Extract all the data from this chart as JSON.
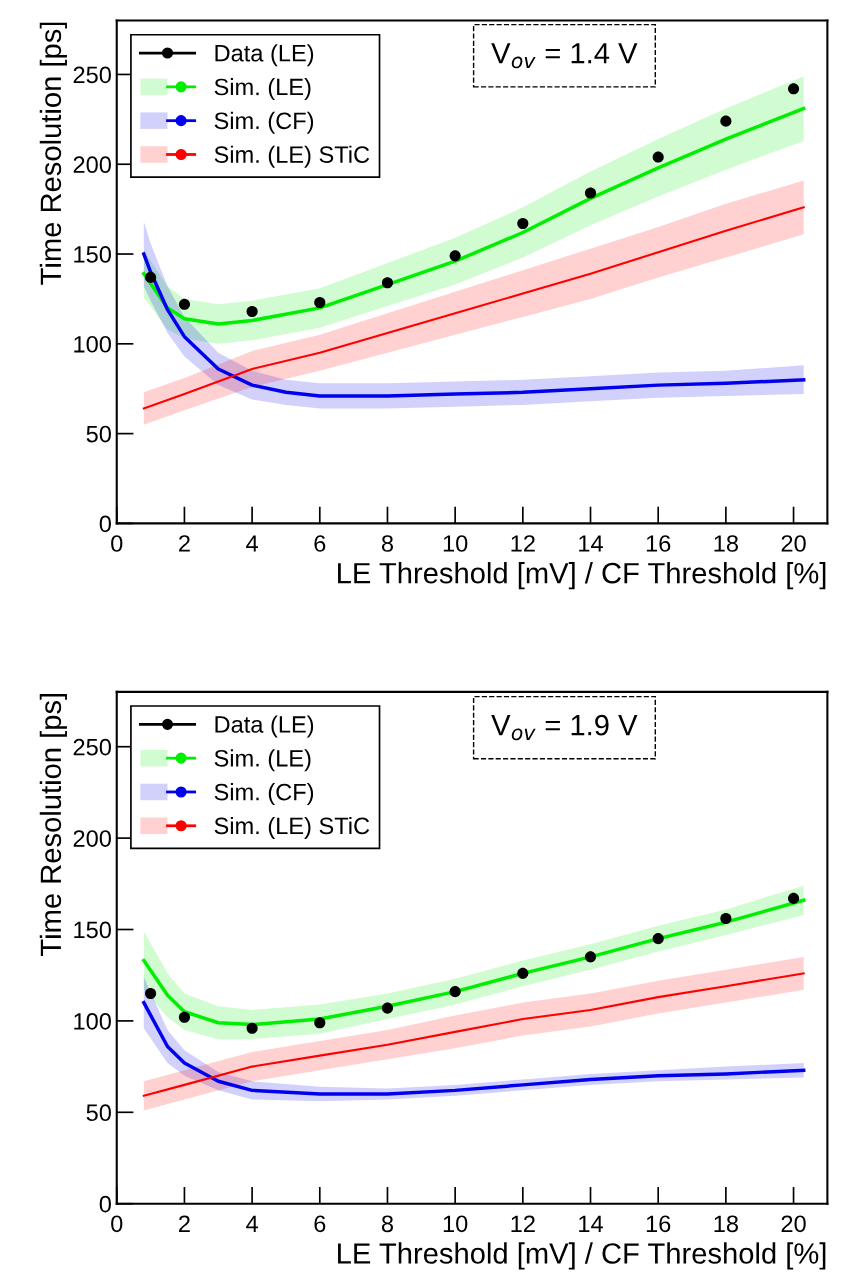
{
  "chart_data": [
    {
      "type": "line",
      "xlabel": "LE Threshold [mV] / CF Threshold [%]",
      "ylabel": "Time Resolution [ps]",
      "annotations": [
        "V$_{ov}$ = 1.4 V"
      ],
      "xlim": [
        0,
        21
      ],
      "ylim": [
        0,
        280
      ],
      "xticks": [
        0,
        2,
        4,
        6,
        8,
        10,
        12,
        14,
        16,
        18,
        20
      ],
      "yticks": [
        0,
        50,
        100,
        150,
        200,
        250
      ],
      "legend": "top left",
      "grid": false,
      "series": [
        {
          "name": "Data (LE)",
          "type": "scatter",
          "marker": "circle",
          "color": "#000000",
          "x": [
            1,
            2,
            4,
            6,
            8,
            10,
            12,
            14,
            16,
            18,
            20
          ],
          "values": [
            137,
            122,
            118,
            123,
            134,
            149,
            167,
            184,
            204,
            224,
            242
          ]
        },
        {
          "name": "Sim. (LE)",
          "color": "#00ee00",
          "x": [
            0.8,
            1.5,
            2,
            3,
            4,
            6,
            8,
            10,
            12,
            14,
            16,
            18,
            20.3
          ],
          "values": [
            139,
            120,
            114,
            111,
            113,
            120,
            133,
            146,
            162,
            181,
            198,
            214,
            231
          ],
          "lower": [
            126,
            108,
            103,
            100,
            102,
            109,
            121,
            133,
            148,
            166,
            182,
            197,
            213
          ],
          "upper": [
            152,
            132,
            125,
            122,
            124,
            131,
            145,
            159,
            176,
            196,
            214,
            231,
            249
          ]
        },
        {
          "name": "Sim. (CF)",
          "color": "#0000ee",
          "x": [
            0.8,
            1,
            1.5,
            2,
            3,
            4,
            5,
            6,
            8,
            10,
            12,
            14,
            16,
            18,
            20.3
          ],
          "values": [
            150,
            140,
            119,
            104,
            86,
            77,
            73,
            71,
            71,
            72,
            73,
            75,
            77,
            78,
            80
          ],
          "lower": [
            132,
            124,
            106,
            93,
            77,
            69,
            66,
            64,
            64,
            65,
            66,
            68,
            70,
            71,
            72
          ],
          "upper": [
            168,
            156,
            132,
            115,
            95,
            85,
            80,
            78,
            78,
            79,
            80,
            82,
            84,
            85,
            88
          ]
        },
        {
          "name": "Sim. (LE) STiC",
          "color": "#ff0000",
          "x": [
            0.8,
            2,
            4,
            6,
            8,
            10,
            12,
            14,
            16,
            18,
            20.3
          ],
          "values": [
            64,
            72,
            86,
            95,
            106,
            117,
            128,
            139,
            151,
            163,
            176
          ],
          "lower": [
            55,
            63,
            76,
            85,
            95,
            105,
            115,
            125,
            137,
            148,
            161
          ],
          "upper": [
            73,
            81,
            96,
            105,
            117,
            129,
            141,
            153,
            165,
            178,
            191
          ]
        }
      ]
    },
    {
      "type": "line",
      "xlabel": "LE Threshold [mV] / CF Threshold [%]",
      "ylabel": "Time Resolution [ps]",
      "annotations": [
        "V$_{ov}$ = 1.9 V"
      ],
      "xlim": [
        0,
        21
      ],
      "ylim": [
        0,
        280
      ],
      "xticks": [
        0,
        2,
        4,
        6,
        8,
        10,
        12,
        14,
        16,
        18,
        20
      ],
      "yticks": [
        0,
        50,
        100,
        150,
        200,
        250
      ],
      "legend": "top left",
      "grid": false,
      "series": [
        {
          "name": "Data (LE)",
          "type": "scatter",
          "marker": "circle",
          "color": "#000000",
          "x": [
            1,
            2,
            4,
            6,
            8,
            10,
            12,
            14,
            16,
            18,
            20
          ],
          "values": [
            115,
            102,
            96,
            99,
            107,
            116,
            126,
            135,
            145,
            156,
            167
          ]
        },
        {
          "name": "Sim. (LE)",
          "color": "#00ee00",
          "x": [
            0.8,
            1.5,
            2,
            3,
            4,
            6,
            8,
            10,
            12,
            14,
            16,
            18,
            20.3
          ],
          "values": [
            133,
            114,
            105,
            99,
            98,
            101,
            108,
            116,
            126,
            135,
            145,
            154,
            166
          ],
          "lower": [
            117,
            102,
            95,
            90,
            90,
            93,
            101,
            109,
            119,
            128,
            138,
            147,
            158
          ],
          "upper": [
            149,
            126,
            115,
            108,
            106,
            109,
            115,
            123,
            133,
            142,
            152,
            161,
            174
          ]
        },
        {
          "name": "Sim. (CF)",
          "color": "#0000ee",
          "x": [
            0.8,
            1.5,
            2,
            3,
            4,
            6,
            8,
            10,
            12,
            14,
            16,
            18,
            20.3
          ],
          "values": [
            110,
            86,
            77,
            67,
            62,
            60,
            60,
            62,
            65,
            68,
            70,
            71,
            73
          ],
          "lower": [
            96,
            77,
            70,
            62,
            57,
            56,
            57,
            59,
            62,
            65,
            67,
            68,
            69
          ],
          "upper": [
            124,
            95,
            84,
            72,
            67,
            64,
            63,
            65,
            68,
            71,
            73,
            75,
            77
          ]
        },
        {
          "name": "Sim. (LE) STiC",
          "color": "#ff0000",
          "x": [
            0.8,
            2,
            4,
            6,
            8,
            10,
            12,
            14,
            16,
            18,
            20.3
          ],
          "values": [
            59,
            65,
            75,
            81,
            87,
            94,
            101,
            106,
            113,
            119,
            126
          ],
          "lower": [
            51,
            57,
            67,
            73,
            79,
            85,
            92,
            97,
            104,
            110,
            117
          ],
          "upper": [
            67,
            73,
            83,
            89,
            95,
            103,
            110,
            115,
            122,
            128,
            135
          ]
        }
      ]
    }
  ]
}
